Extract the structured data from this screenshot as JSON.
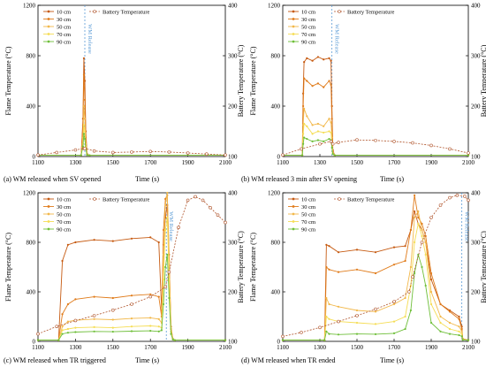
{
  "figure": {
    "legend_labels": [
      "10 cm",
      "30 cm",
      "50 cm",
      "70 cm",
      "90 cm"
    ],
    "battery_legend": "Battery Temperature",
    "series_colors": [
      "#c65a11",
      "#e07b1a",
      "#f2b84b",
      "#f5dd55",
      "#6fbf3a"
    ],
    "battery_color": "#b0552c",
    "release_line_color": "#5b9bd5",
    "release_label": "WM Release",
    "x_ticks": [
      1100,
      1300,
      1500,
      1700,
      1900,
      2100
    ],
    "left_ticks": [
      0,
      400,
      800,
      1200
    ],
    "right_ticks": [
      100,
      200,
      300,
      400
    ],
    "ylabel_left": "Flame Temperature (°C)",
    "ylabel_right": "Battery Temperature (°C)",
    "xlabel": "Time (s)"
  },
  "chart_data": [
    {
      "type": "line",
      "caption": "(a) WM released when SV opened",
      "release_x": 1350,
      "xlim": [
        1100,
        2100
      ],
      "ylim_left": [
        0,
        1200
      ],
      "ylim_right": [
        100,
        400
      ],
      "series": [
        {
          "name": "10 cm",
          "x": [
            1100,
            1330,
            1340,
            1345,
            1350,
            1355,
            1362,
            1375,
            2100
          ],
          "values": [
            10,
            10,
            300,
            780,
            600,
            200,
            20,
            10,
            10
          ]
        },
        {
          "name": "30 cm",
          "x": [
            1100,
            1330,
            1340,
            1345,
            1350,
            1355,
            1362,
            1375,
            2100
          ],
          "values": [
            10,
            10,
            250,
            650,
            450,
            150,
            15,
            10,
            10
          ]
        },
        {
          "name": "50 cm",
          "x": [
            1100,
            1330,
            1340,
            1345,
            1350,
            1355,
            1362,
            1375,
            2100
          ],
          "values": [
            10,
            10,
            150,
            400,
            300,
            100,
            15,
            10,
            10
          ]
        },
        {
          "name": "70 cm",
          "x": [
            1100,
            1330,
            1340,
            1345,
            1350,
            1355,
            1362,
            1375,
            2100
          ],
          "values": [
            10,
            10,
            100,
            250,
            200,
            80,
            12,
            10,
            10
          ]
        },
        {
          "name": "90 cm",
          "x": [
            1100,
            1330,
            1340,
            1345,
            1350,
            1355,
            1362,
            1375,
            2100
          ],
          "values": [
            10,
            10,
            80,
            180,
            140,
            60,
            12,
            10,
            10
          ]
        },
        {
          "name": "Battery Temperature",
          "axis": "right",
          "x": [
            1100,
            1200,
            1300,
            1345,
            1350,
            1400,
            1500,
            1600,
            1700,
            1800,
            1900,
            2000,
            2100
          ],
          "values": [
            103,
            108,
            113,
            116,
            116,
            111,
            108,
            109,
            110,
            109,
            107,
            105,
            103
          ]
        }
      ]
    },
    {
      "type": "line",
      "caption": "(b) WM released 3 min after SV opening",
      "release_x": 1365,
      "xlim": [
        1100,
        2100
      ],
      "ylim_left": [
        0,
        1200
      ],
      "ylim_right": [
        100,
        400
      ],
      "series": [
        {
          "name": "10 cm",
          "x": [
            1100,
            1205,
            1210,
            1215,
            1230,
            1260,
            1290,
            1320,
            1350,
            1360,
            1365,
            1370,
            1380,
            2100
          ],
          "values": [
            10,
            10,
            500,
            750,
            780,
            760,
            790,
            770,
            780,
            760,
            400,
            50,
            10,
            10
          ]
        },
        {
          "name": "30 cm",
          "x": [
            1100,
            1205,
            1210,
            1215,
            1230,
            1260,
            1290,
            1320,
            1350,
            1360,
            1365,
            1370,
            1380,
            2100
          ],
          "values": [
            10,
            10,
            400,
            620,
            600,
            560,
            580,
            550,
            600,
            570,
            300,
            40,
            10,
            10
          ]
        },
        {
          "name": "50 cm",
          "x": [
            1100,
            1205,
            1210,
            1215,
            1230,
            1260,
            1290,
            1320,
            1350,
            1360,
            1365,
            1370,
            1380,
            2100
          ],
          "values": [
            10,
            10,
            250,
            380,
            320,
            250,
            260,
            240,
            300,
            270,
            150,
            30,
            10,
            10
          ]
        },
        {
          "name": "70 cm",
          "x": [
            1100,
            1205,
            1210,
            1215,
            1230,
            1260,
            1290,
            1320,
            1350,
            1360,
            1365,
            1370,
            1380,
            2100
          ],
          "values": [
            10,
            10,
            180,
            260,
            240,
            180,
            200,
            190,
            200,
            190,
            100,
            25,
            10,
            10
          ]
        },
        {
          "name": "90 cm",
          "x": [
            1100,
            1205,
            1210,
            1215,
            1230,
            1260,
            1290,
            1320,
            1350,
            1360,
            1365,
            1370,
            1380,
            2100
          ],
          "values": [
            10,
            10,
            100,
            150,
            140,
            120,
            130,
            120,
            140,
            130,
            70,
            20,
            10,
            10
          ]
        },
        {
          "name": "Battery Temperature",
          "axis": "right",
          "x": [
            1100,
            1200,
            1300,
            1360,
            1370,
            1400,
            1500,
            1600,
            1700,
            1800,
            1900,
            2000,
            2100
          ],
          "values": [
            103,
            115,
            125,
            130,
            125,
            128,
            133,
            132,
            130,
            127,
            122,
            115,
            107
          ]
        }
      ]
    },
    {
      "type": "line",
      "caption": "(c) WM released when TR triggered",
      "release_x": 1785,
      "xlim": [
        1100,
        2100
      ],
      "ylim_left": [
        0,
        1200
      ],
      "ylim_right": [
        100,
        400
      ],
      "series": [
        {
          "name": "10 cm",
          "x": [
            1100,
            1210,
            1230,
            1260,
            1300,
            1400,
            1500,
            1600,
            1700,
            1745,
            1760,
            1770,
            1780,
            1790,
            1800,
            1810,
            1820,
            1830,
            2100
          ],
          "values": [
            10,
            10,
            650,
            780,
            800,
            820,
            810,
            830,
            840,
            800,
            250,
            780,
            1000,
            1100,
            600,
            100,
            20,
            10,
            10
          ]
        },
        {
          "name": "30 cm",
          "x": [
            1100,
            1210,
            1230,
            1260,
            1300,
            1400,
            1500,
            1600,
            1700,
            1745,
            1760,
            1770,
            1780,
            1790,
            1800,
            1810,
            1820,
            1830,
            2100
          ],
          "values": [
            10,
            10,
            220,
            300,
            340,
            360,
            350,
            370,
            380,
            360,
            200,
            900,
            1150,
            1180,
            700,
            120,
            20,
            10,
            10
          ]
        },
        {
          "name": "50 cm",
          "x": [
            1100,
            1210,
            1230,
            1260,
            1300,
            1400,
            1500,
            1600,
            1700,
            1745,
            1760,
            1770,
            1780,
            1790,
            1800,
            1810,
            1820,
            1830,
            2100
          ],
          "values": [
            10,
            10,
            120,
            160,
            170,
            180,
            175,
            185,
            190,
            180,
            150,
            700,
            1100,
            1200,
            650,
            100,
            20,
            10,
            10
          ]
        },
        {
          "name": "70 cm",
          "x": [
            1100,
            1210,
            1230,
            1260,
            1300,
            1400,
            1500,
            1600,
            1700,
            1745,
            1760,
            1770,
            1780,
            1790,
            1800,
            1810,
            1820,
            1830,
            2100
          ],
          "values": [
            10,
            10,
            90,
            100,
            110,
            115,
            110,
            120,
            125,
            120,
            110,
            500,
            900,
            1000,
            500,
            80,
            15,
            10,
            10
          ]
        },
        {
          "name": "90 cm",
          "x": [
            1100,
            1210,
            1230,
            1260,
            1300,
            1400,
            1500,
            1600,
            1700,
            1745,
            1760,
            1770,
            1780,
            1790,
            1800,
            1810,
            1820,
            1830,
            2100
          ],
          "values": [
            10,
            10,
            60,
            70,
            75,
            80,
            78,
            82,
            85,
            80,
            90,
            300,
            600,
            700,
            350,
            60,
            15,
            10,
            10
          ]
        },
        {
          "name": "Battery Temperature",
          "axis": "right",
          "x": [
            1100,
            1200,
            1300,
            1400,
            1500,
            1600,
            1700,
            1780,
            1800,
            1850,
            1900,
            1940,
            1980,
            2020,
            2060,
            2100
          ],
          "values": [
            115,
            130,
            142,
            152,
            163,
            175,
            190,
            210,
            240,
            330,
            385,
            392,
            385,
            370,
            355,
            340
          ]
        }
      ]
    },
    {
      "type": "line",
      "caption": "(d) WM released when TR ended",
      "release_x": 2065,
      "xlim": [
        1100,
        2100
      ],
      "ylim_left": [
        0,
        1200
      ],
      "ylim_right": [
        100,
        400
      ],
      "series": [
        {
          "name": "10 cm",
          "x": [
            1100,
            1325,
            1335,
            1350,
            1400,
            1500,
            1600,
            1700,
            1760,
            1790,
            1810,
            1830,
            1850,
            1870,
            1900,
            1950,
            2000,
            2050,
            2065,
            2070,
            2100
          ],
          "values": [
            10,
            10,
            780,
            770,
            720,
            740,
            720,
            760,
            770,
            900,
            1050,
            950,
            900,
            800,
            500,
            300,
            250,
            200,
            120,
            20,
            10
          ]
        },
        {
          "name": "30 cm",
          "x": [
            1100,
            1325,
            1335,
            1350,
            1400,
            1500,
            1600,
            1700,
            1760,
            1790,
            1810,
            1830,
            1850,
            1870,
            1900,
            1950,
            2000,
            2050,
            2065,
            2070,
            2100
          ],
          "values": [
            10,
            10,
            600,
            580,
            560,
            580,
            550,
            620,
            650,
            900,
            1180,
            1000,
            950,
            850,
            550,
            300,
            240,
            180,
            100,
            20,
            10
          ]
        },
        {
          "name": "50 cm",
          "x": [
            1100,
            1325,
            1335,
            1350,
            1400,
            1500,
            1600,
            1700,
            1760,
            1790,
            1810,
            1830,
            1850,
            1870,
            1900,
            1950,
            2000,
            2050,
            2065,
            2070,
            2100
          ],
          "values": [
            10,
            10,
            350,
            300,
            280,
            250,
            240,
            300,
            350,
            600,
            1000,
            1050,
            900,
            800,
            400,
            200,
            150,
            120,
            80,
            15,
            10
          ]
        },
        {
          "name": "70 cm",
          "x": [
            1100,
            1325,
            1335,
            1350,
            1400,
            1500,
            1600,
            1700,
            1760,
            1790,
            1810,
            1830,
            1850,
            1870,
            1900,
            1950,
            2000,
            2050,
            2065,
            2070,
            2100
          ],
          "values": [
            10,
            10,
            200,
            180,
            160,
            150,
            140,
            160,
            200,
            450,
            800,
            950,
            850,
            700,
            300,
            150,
            100,
            80,
            60,
            15,
            10
          ]
        },
        {
          "name": "90 cm",
          "x": [
            1100,
            1325,
            1335,
            1350,
            1400,
            1500,
            1600,
            1700,
            1760,
            1790,
            1810,
            1830,
            1850,
            1870,
            1900,
            1950,
            2000,
            2050,
            2065,
            2070,
            2100
          ],
          "values": [
            10,
            10,
            80,
            60,
            55,
            60,
            58,
            65,
            100,
            250,
            550,
            700,
            600,
            450,
            150,
            80,
            60,
            50,
            40,
            12,
            10
          ]
        },
        {
          "name": "Battery Temperature",
          "axis": "right",
          "x": [
            1100,
            1200,
            1300,
            1400,
            1500,
            1600,
            1700,
            1780,
            1800,
            1850,
            1900,
            1950,
            2000,
            2040,
            2080,
            2100
          ],
          "values": [
            110,
            118,
            128,
            140,
            152,
            165,
            180,
            200,
            230,
            300,
            350,
            375,
            390,
            395,
            393,
            385
          ]
        }
      ]
    }
  ]
}
